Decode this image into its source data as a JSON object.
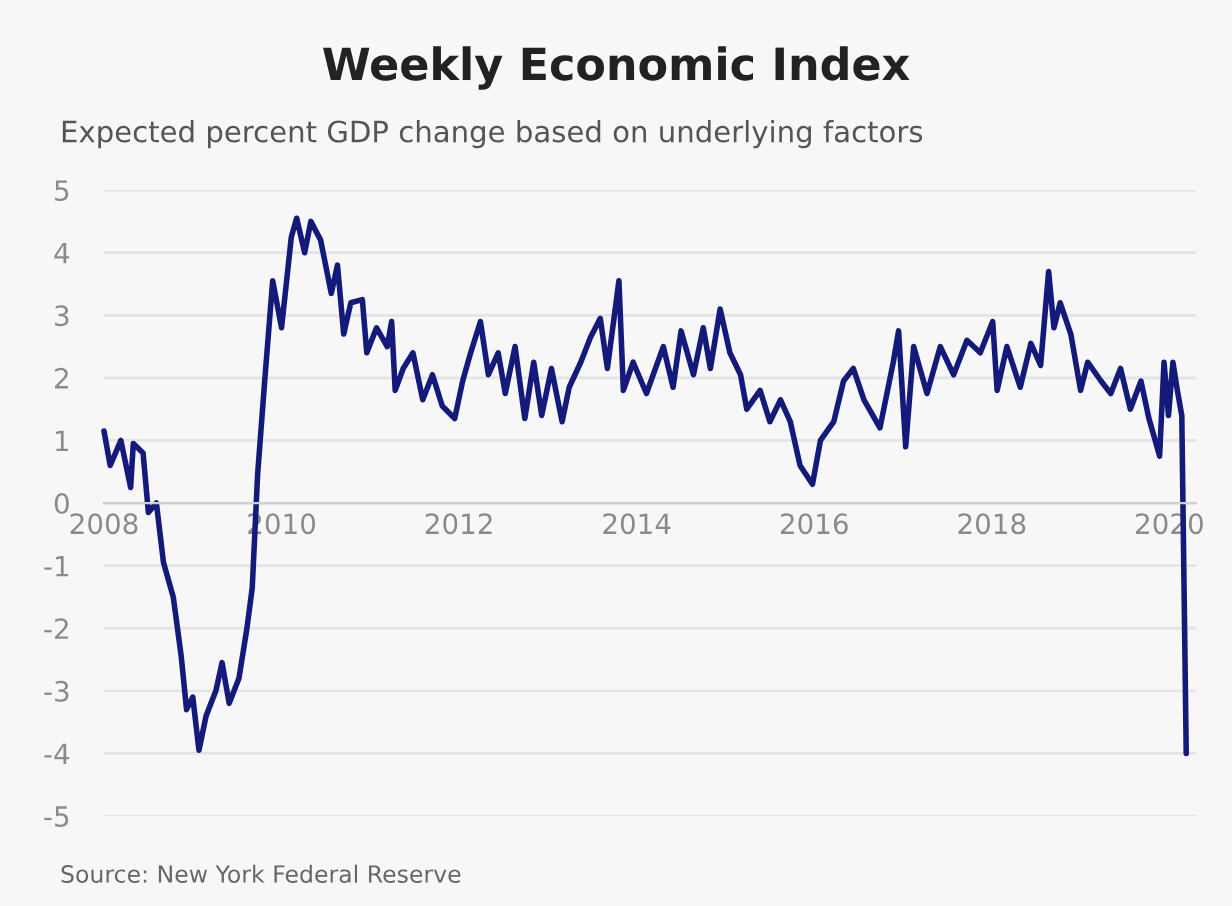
{
  "chart_data": {
    "type": "line",
    "title": "Weekly Economic Index",
    "subtitle": "Expected percent GDP change based on underlying factors",
    "annotations": [
      "Source: New York Federal Reserve"
    ],
    "x": [
      2008.0,
      2008.07,
      2008.19,
      2008.3,
      2008.33,
      2008.44,
      2008.5,
      2008.59,
      2008.67,
      2008.78,
      2008.87,
      2008.93,
      2009.0,
      2009.07,
      2009.15,
      2009.26,
      2009.33,
      2009.41,
      2009.52,
      2009.61,
      2009.67,
      2009.73,
      2009.81,
      2009.9,
      2010.0,
      2010.11,
      2010.17,
      2010.26,
      2010.33,
      2010.44,
      2010.56,
      2010.63,
      2010.7,
      2010.78,
      2010.91,
      2010.96,
      2011.07,
      2011.19,
      2011.24,
      2011.28,
      2011.37,
      2011.48,
      2011.59,
      2011.7,
      2011.81,
      2011.95,
      2012.04,
      2012.13,
      2012.24,
      2012.33,
      2012.44,
      2012.52,
      2012.63,
      2012.74,
      2012.84,
      2012.93,
      2013.04,
      2013.16,
      2013.24,
      2013.37,
      2013.48,
      2013.59,
      2013.67,
      2013.8,
      2013.85,
      2013.96,
      2014.11,
      2014.3,
      2014.41,
      2014.5,
      2014.64,
      2014.75,
      2014.83,
      2014.94,
      2015.05,
      2015.17,
      2015.24,
      2015.39,
      2015.5,
      2015.62,
      2015.73,
      2015.84,
      2015.98,
      2016.07,
      2016.22,
      2016.33,
      2016.44,
      2016.56,
      2016.74,
      2016.89,
      2016.95,
      2017.03,
      2017.12,
      2017.27,
      2017.42,
      2017.57,
      2017.72,
      2017.87,
      2018.01,
      2018.06,
      2018.17,
      2018.32,
      2018.44,
      2018.55,
      2018.64,
      2018.7,
      2018.77,
      2018.89,
      2019.0,
      2019.08,
      2019.23,
      2019.34,
      2019.45,
      2019.56,
      2019.68,
      2019.77,
      2019.89,
      2019.94,
      2019.99,
      2020.04,
      2020.09,
      2020.14,
      2020.19
    ],
    "series": [
      {
        "color": "#141a7a",
        "values": [
          1.15,
          0.6,
          1.0,
          0.25,
          0.95,
          0.8,
          -0.15,
          0.0,
          -0.95,
          -1.5,
          -2.45,
          -3.3,
          -3.1,
          -3.95,
          -3.4,
          -3.0,
          -2.55,
          -3.2,
          -2.8,
          -2.0,
          -1.35,
          0.45,
          1.95,
          3.55,
          2.8,
          4.25,
          4.55,
          4.0,
          4.5,
          4.2,
          3.35,
          3.8,
          2.7,
          3.2,
          3.25,
          2.4,
          2.8,
          2.5,
          2.9,
          1.8,
          2.15,
          2.4,
          1.65,
          2.05,
          1.55,
          1.35,
          1.95,
          2.4,
          2.9,
          2.05,
          2.4,
          1.75,
          2.5,
          1.35,
          2.25,
          1.4,
          2.15,
          1.3,
          1.85,
          2.25,
          2.65,
          2.95,
          2.15,
          3.55,
          1.8,
          2.25,
          1.75,
          2.5,
          1.85,
          2.75,
          2.05,
          2.8,
          2.15,
          3.1,
          2.4,
          2.05,
          1.5,
          1.8,
          1.3,
          1.65,
          1.3,
          0.6,
          0.3,
          1.0,
          1.3,
          1.95,
          2.15,
          1.65,
          1.2,
          2.25,
          2.75,
          0.9,
          2.5,
          1.75,
          2.5,
          2.05,
          2.6,
          2.4,
          2.9,
          1.8,
          2.5,
          1.85,
          2.55,
          2.2,
          3.7,
          2.8,
          3.2,
          2.7,
          1.8,
          2.25,
          1.95,
          1.75,
          2.15,
          1.5,
          1.95,
          1.35,
          0.75,
          2.25,
          1.4,
          2.25,
          1.8,
          1.4,
          -4.0
        ]
      }
    ],
    "xlim": [
      2008,
      2020.3
    ],
    "xticks": [
      2008,
      2010,
      2012,
      2014,
      2016,
      2018,
      2020
    ],
    "ylim": [
      -5,
      5
    ],
    "yticks": [
      -5,
      -4,
      -3,
      -2,
      -1,
      0,
      1,
      2,
      3,
      4,
      5
    ],
    "grid": "y",
    "marker": "none",
    "line_style": "solid"
  }
}
